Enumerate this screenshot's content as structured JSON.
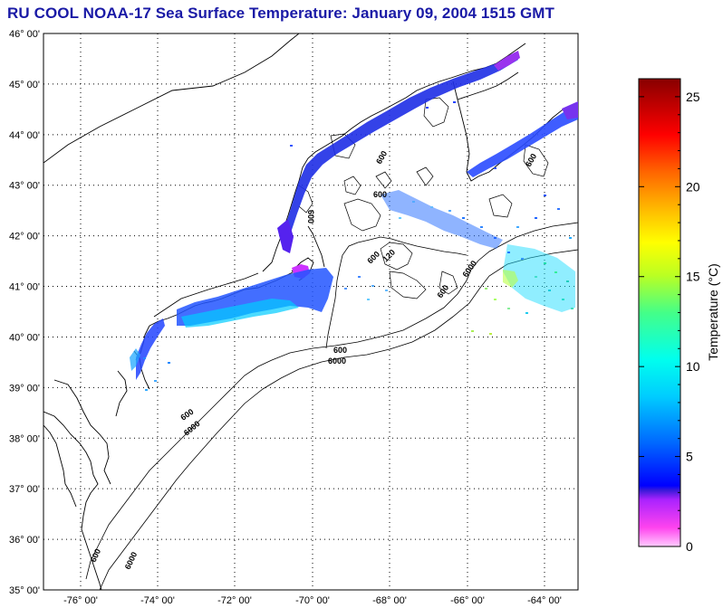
{
  "title": "RU COOL  NOAA-17  Sea Surface Temperature:  January 09, 2004 1515 GMT",
  "map": {
    "lat_labels": [
      {
        "text": "46° 00'",
        "value": 46
      },
      {
        "text": "45° 00'",
        "value": 45
      },
      {
        "text": "44° 00'",
        "value": 44
      },
      {
        "text": "43° 00'",
        "value": 43
      },
      {
        "text": "42° 00'",
        "value": 42
      },
      {
        "text": "41° 00'",
        "value": 41
      },
      {
        "text": "40° 00'",
        "value": 40
      },
      {
        "text": "39° 00'",
        "value": 39
      },
      {
        "text": "38° 00'",
        "value": 38
      },
      {
        "text": "37° 00'",
        "value": 37
      },
      {
        "text": "36° 00'",
        "value": 36
      },
      {
        "text": "35° 00'",
        "value": 35
      }
    ],
    "lon_labels": [
      {
        "text": "-76° 00'",
        "value": -76
      },
      {
        "text": "-74° 00'",
        "value": -74
      },
      {
        "text": "-72° 00'",
        "value": -72
      },
      {
        "text": "-70° 00'",
        "value": -70
      },
      {
        "text": "-68° 00'",
        "value": -68
      },
      {
        "text": "-66° 00'",
        "value": -66
      },
      {
        "text": "-64° 00'",
        "value": -64
      }
    ],
    "depth_labels": [
      "600",
      "6000",
      "600",
      "6000",
      "600",
      "6000",
      "600",
      "6000",
      "600",
      "600",
      "600",
      "120",
      "600",
      "600"
    ]
  },
  "colorbar": {
    "title": "Temperature (°C)",
    "ticks": [
      "0",
      "5",
      "10",
      "15",
      "20",
      "25"
    ],
    "range": [
      0,
      26
    ],
    "colors": [
      "#ff55ff",
      "#0000ff",
      "#00aaff",
      "#00ffff",
      "#88ff44",
      "#ffff00",
      "#ff9900",
      "#ff0000",
      "#880000"
    ]
  }
}
